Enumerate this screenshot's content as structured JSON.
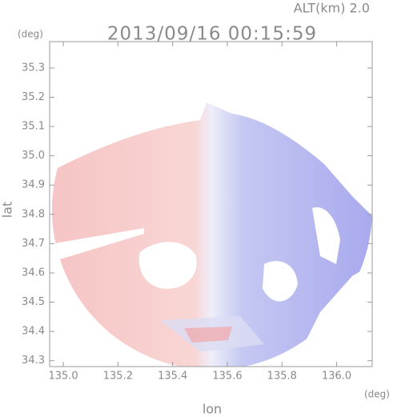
{
  "chart_data": {
    "type": "radar-field",
    "title": "2013/09/16 00:15:59",
    "subtitle": "ALT(km) 2.0",
    "y_unit": "(deg)",
    "x_unit": "(deg)",
    "xlabel": "lon",
    "ylabel": "lat",
    "xlim": [
      134.95,
      136.13
    ],
    "ylim": [
      34.28,
      35.39
    ],
    "xticks": [
      {
        "value": 135,
        "label": "135.0"
      },
      135.2,
      135.4,
      135.6,
      135.8,
      {
        "value": 136,
        "label": "136.0"
      }
    ],
    "yticks": [
      34.3,
      34.4,
      34.5,
      34.6,
      34.7,
      34.8,
      34.9,
      {
        "value": 35,
        "label": "35.0"
      },
      35.1,
      35.2,
      35.3
    ]
  }
}
